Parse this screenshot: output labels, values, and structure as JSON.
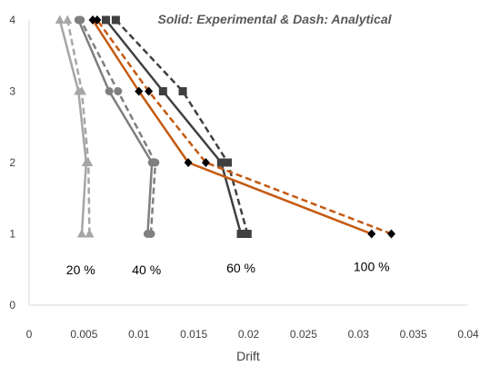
{
  "chart_data": {
    "type": "line",
    "title": "Solid: Experimental & Dash: Analytical",
    "xlabel": "Drift",
    "ylabel": "",
    "xlim": [
      0,
      0.04
    ],
    "ylim": [
      0,
      4
    ],
    "x_ticks": [
      0,
      0.005,
      0.01,
      0.015,
      0.02,
      0.025,
      0.03,
      0.035,
      0.04
    ],
    "x_tick_labels": [
      "0",
      "0.005",
      "0.01",
      "0.015",
      "0.02",
      "0.025",
      "0.03",
      "0.035",
      "0.04"
    ],
    "y_ticks": [
      0,
      1,
      2,
      3,
      4
    ],
    "y_tick_labels": [
      "0",
      "1",
      "2",
      "3",
      "4"
    ],
    "grid": false,
    "legend": "none",
    "series": [
      {
        "group": "20 %",
        "kind": "experimental",
        "dashed": false,
        "marker": "triangle",
        "color": "#a6a6a6",
        "x": [
          0.0048,
          0.0052,
          0.0045,
          0.0028
        ],
        "y": [
          1,
          2,
          3,
          4
        ]
      },
      {
        "group": "20 %",
        "kind": "analytical",
        "dashed": true,
        "marker": "triangle",
        "color": "#a6a6a6",
        "x": [
          0.0055,
          0.0054,
          0.0048,
          0.0035
        ],
        "y": [
          1,
          2,
          3,
          4
        ]
      },
      {
        "group": "40 %",
        "kind": "experimental",
        "dashed": false,
        "marker": "circle",
        "color": "#7f7f7f",
        "x": [
          0.0108,
          0.0112,
          0.0073,
          0.0045
        ],
        "y": [
          1,
          2,
          3,
          4
        ]
      },
      {
        "group": "40 %",
        "kind": "analytical",
        "dashed": true,
        "marker": "circle",
        "color": "#7f7f7f",
        "x": [
          0.0111,
          0.0115,
          0.0081,
          0.0047
        ],
        "y": [
          1,
          2,
          3,
          4
        ]
      },
      {
        "group": "60 %",
        "kind": "experimental",
        "dashed": false,
        "marker": "square",
        "color": "#404040",
        "x": [
          0.0193,
          0.0175,
          0.0122,
          0.007
        ],
        "y": [
          1,
          2,
          3,
          4
        ]
      },
      {
        "group": "60 %",
        "kind": "analytical",
        "dashed": true,
        "marker": "square",
        "color": "#404040",
        "x": [
          0.0199,
          0.0181,
          0.014,
          0.0079
        ],
        "y": [
          1,
          2,
          3,
          4
        ]
      },
      {
        "group": "100 %",
        "kind": "experimental",
        "dashed": false,
        "marker": "diamond",
        "color": "#c55a11",
        "x": [
          0.0312,
          0.0145,
          0.01,
          0.0058
        ],
        "y": [
          1,
          2,
          3,
          4
        ]
      },
      {
        "group": "100 %",
        "kind": "analytical",
        "dashed": true,
        "marker": "diamond",
        "color": "#c55a11",
        "x": [
          0.033,
          0.0161,
          0.0109,
          0.0062
        ],
        "y": [
          1,
          2,
          3,
          4
        ]
      }
    ],
    "annotations": [
      {
        "text": "20 %",
        "x": 0.0047,
        "y": 0.5
      },
      {
        "text": "40 %",
        "x": 0.0107,
        "y": 0.5
      },
      {
        "text": "60 %",
        "x": 0.0193,
        "y": 0.52
      },
      {
        "text": "100 %",
        "x": 0.0312,
        "y": 0.54
      }
    ]
  }
}
